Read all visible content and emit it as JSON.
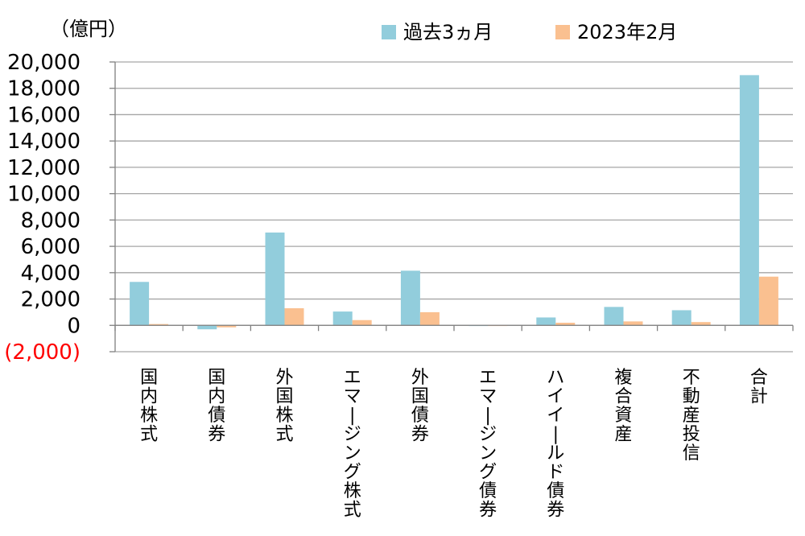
{
  "chart_data": {
    "type": "bar",
    "unit_label": "（億円）",
    "categories": [
      "国内株式",
      "国内債券",
      "外国株式",
      "エマージング株式",
      "外国債券",
      "エマージング債券",
      "ハイイールド債券",
      "複合資産",
      "不動産投信",
      "合計"
    ],
    "series": [
      {
        "name": "過去3ヵ月",
        "values": [
          3300,
          -300,
          7050,
          1050,
          4150,
          -50,
          600,
          1400,
          1150,
          19000
        ]
      },
      {
        "name": "2023年2月",
        "values": [
          100,
          -150,
          1300,
          400,
          1000,
          0,
          200,
          300,
          250,
          3700
        ]
      }
    ],
    "y_ticks": [
      {
        "value": 20000,
        "label": "20,000"
      },
      {
        "value": 18000,
        "label": "18,000"
      },
      {
        "value": 16000,
        "label": "16,000"
      },
      {
        "value": 14000,
        "label": "14,000"
      },
      {
        "value": 12000,
        "label": "12,000"
      },
      {
        "value": 10000,
        "label": "10,000"
      },
      {
        "value": 8000,
        "label": "8,000"
      },
      {
        "value": 6000,
        "label": "6,000"
      },
      {
        "value": 4000,
        "label": "4,000"
      },
      {
        "value": 2000,
        "label": "2,000"
      },
      {
        "value": 0,
        "label": "0"
      },
      {
        "value": -2000,
        "label": "(2,000)"
      }
    ],
    "ylim": [
      -2000,
      20000
    ],
    "grid": true,
    "legend_position": "top",
    "colors": {
      "series_1": "#92cddc",
      "series_2": "#fac090",
      "negative_tick": "#ff0000",
      "grid": "#a6a6a6",
      "axis": "#808080"
    }
  }
}
